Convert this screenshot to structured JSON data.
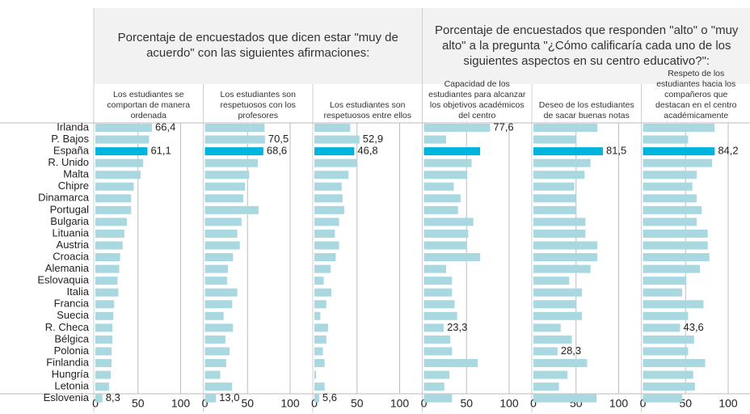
{
  "chart_data": {
    "type": "bar",
    "orientation": "horizontal",
    "groups": [
      {
        "title": "Porcentaje de encuestados que dicen estar \"muy de acuerdo\" con las siguientes afirmaciones:"
      },
      {
        "title": "Porcentaje de encuestados que responden \"alto\" o \"muy alto\" a la pregunta \"¿Cómo calificaría cada uno de los siguientes aspectos en su centro educativo?\":"
      }
    ],
    "categories": [
      "Irlanda",
      "P. Bajos",
      "España",
      "R. Unido",
      "Malta",
      "Chipre",
      "Dinamarca",
      "Portugal",
      "Bulgaria",
      "Lituania",
      "Austria",
      "Croacia",
      "Alemania",
      "Eslovaquia",
      "Italia",
      "Francia",
      "Suecia",
      "R. Checa",
      "Bélgica",
      "Polonia",
      "Finlandia",
      "Hungría",
      "Letonia",
      "Eslovenia"
    ],
    "highlight": "España",
    "color": "#a9d8e1",
    "highlight_color": "#00b4e0",
    "xlim": [
      0,
      100
    ],
    "xticks": [
      0,
      50,
      100
    ],
    "grid": true,
    "series": [
      {
        "name": "Los estudiantes se comportan de manera ordenada",
        "values": [
          66.4,
          63,
          61.1,
          56,
          53,
          45,
          42,
          42,
          37,
          34,
          32,
          29,
          28,
          26,
          27,
          22,
          21,
          20,
          20,
          19,
          19,
          18,
          16,
          8.3
        ],
        "value_labels": [
          "66,4",
          null,
          "61,1",
          null,
          null,
          null,
          null,
          null,
          null,
          null,
          null,
          null,
          null,
          null,
          null,
          null,
          null,
          null,
          null,
          null,
          null,
          null,
          null,
          "8,3"
        ]
      },
      {
        "name": "Los estudiantes son respetuosos con los profesores",
        "values": [
          70,
          70.5,
          68.6,
          62,
          52,
          47,
          45,
          63,
          43,
          38,
          41,
          33,
          27,
          26,
          38,
          32,
          22,
          33,
          24,
          29,
          25,
          18,
          32,
          13.0
        ],
        "value_labels": [
          null,
          "70,5",
          "68,6",
          null,
          null,
          null,
          null,
          null,
          null,
          null,
          null,
          null,
          null,
          null,
          null,
          null,
          null,
          null,
          null,
          null,
          null,
          null,
          null,
          "13,0"
        ]
      },
      {
        "name": "Los estudiantes son respetuosos entre ellos",
        "values": [
          42,
          52.9,
          46.8,
          50,
          40,
          32,
          33,
          35,
          29,
          24,
          29,
          25,
          19,
          11,
          20,
          14,
          7,
          16,
          14,
          10,
          12,
          2,
          12,
          5.6
        ],
        "value_labels": [
          null,
          "52,9",
          "46,8",
          null,
          null,
          null,
          null,
          null,
          null,
          null,
          null,
          null,
          null,
          null,
          null,
          null,
          null,
          null,
          null,
          null,
          null,
          null,
          null,
          "5,6"
        ]
      },
      {
        "name": "Capacidad de los estudiantes para alcanzar los objetivos académicos del centro",
        "values": [
          77.6,
          26,
          66,
          56,
          51,
          35,
          43,
          40,
          58,
          52,
          50,
          66,
          26,
          33,
          33,
          36,
          39,
          23.3,
          31,
          33,
          63,
          30,
          24,
          33
        ],
        "value_labels": [
          "77,6",
          null,
          null,
          null,
          null,
          null,
          null,
          null,
          null,
          null,
          null,
          null,
          null,
          null,
          null,
          null,
          null,
          "23,3",
          null,
          null,
          null,
          null,
          null,
          null
        ]
      },
      {
        "name": "Deseo de los estudiantes de sacar buenas notas",
        "values": [
          75,
          50,
          81.5,
          67,
          60,
          48,
          50,
          50,
          61,
          61,
          75,
          75,
          67,
          42,
          57,
          50,
          57,
          32,
          45,
          28.3,
          63,
          40,
          30,
          74
        ],
        "value_labels": [
          null,
          null,
          "81,5",
          null,
          null,
          null,
          null,
          null,
          null,
          null,
          null,
          null,
          null,
          null,
          null,
          null,
          null,
          null,
          null,
          "28,3",
          null,
          null,
          null,
          null
        ]
      },
      {
        "name": "Respeto de los estudiantes hacia los compañeros que destacan en el centro académicamente",
        "values": [
          84,
          53,
          84.2,
          81,
          63,
          58,
          63,
          69,
          63,
          76,
          76,
          78,
          67,
          51,
          46,
          71,
          53,
          43.6,
          60,
          53,
          73,
          59,
          61,
          46
        ],
        "value_labels": [
          null,
          null,
          "84,2",
          null,
          null,
          null,
          null,
          null,
          null,
          null,
          null,
          null,
          null,
          null,
          null,
          null,
          null,
          "43,6",
          null,
          null,
          null,
          null,
          null,
          null
        ]
      }
    ]
  }
}
